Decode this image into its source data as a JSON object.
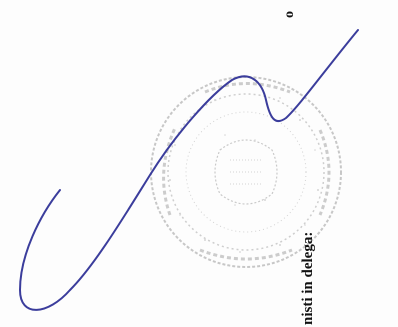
{
  "document": {
    "visible_text_line": "nisti in delega:",
    "top_fragment": "o",
    "seal_text": "",
    "signature_color": "#3b3d9c",
    "seal_color": "#9c9c9c"
  }
}
